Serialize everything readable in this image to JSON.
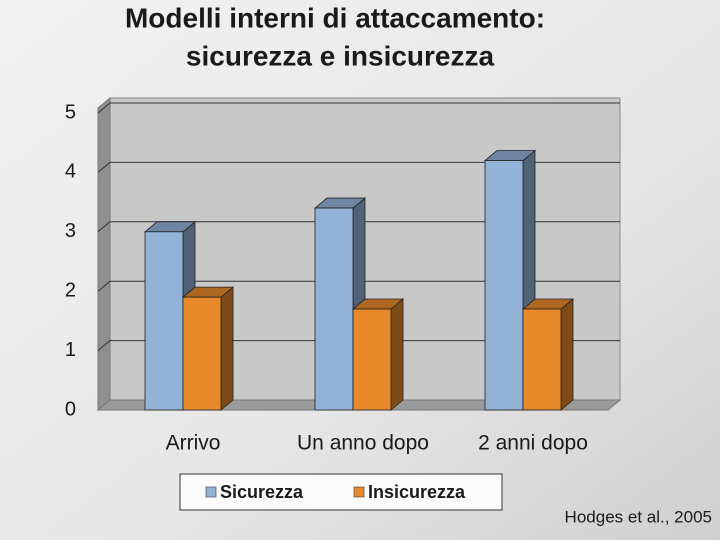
{
  "chart_data": {
    "type": "bar3d",
    "title": [
      "Modelli interni di attaccamento:",
      "sicurezza e insicurezza"
    ],
    "categories": [
      "Arrivo",
      "Un anno dopo",
      "2 anni dopo"
    ],
    "series": [
      {
        "name": "Sicurezza",
        "color": "#92b2d8",
        "values": [
          3.0,
          3.4,
          4.2
        ]
      },
      {
        "name": "Insicurezza",
        "color": "#e8892c",
        "values": [
          1.9,
          1.7,
          1.7
        ]
      }
    ],
    "ylim": [
      0,
      5
    ],
    "yticks": [
      0,
      1,
      2,
      3,
      4,
      5
    ],
    "grid": true,
    "legend": "bottom",
    "source": "Hodges et al., 2005"
  }
}
